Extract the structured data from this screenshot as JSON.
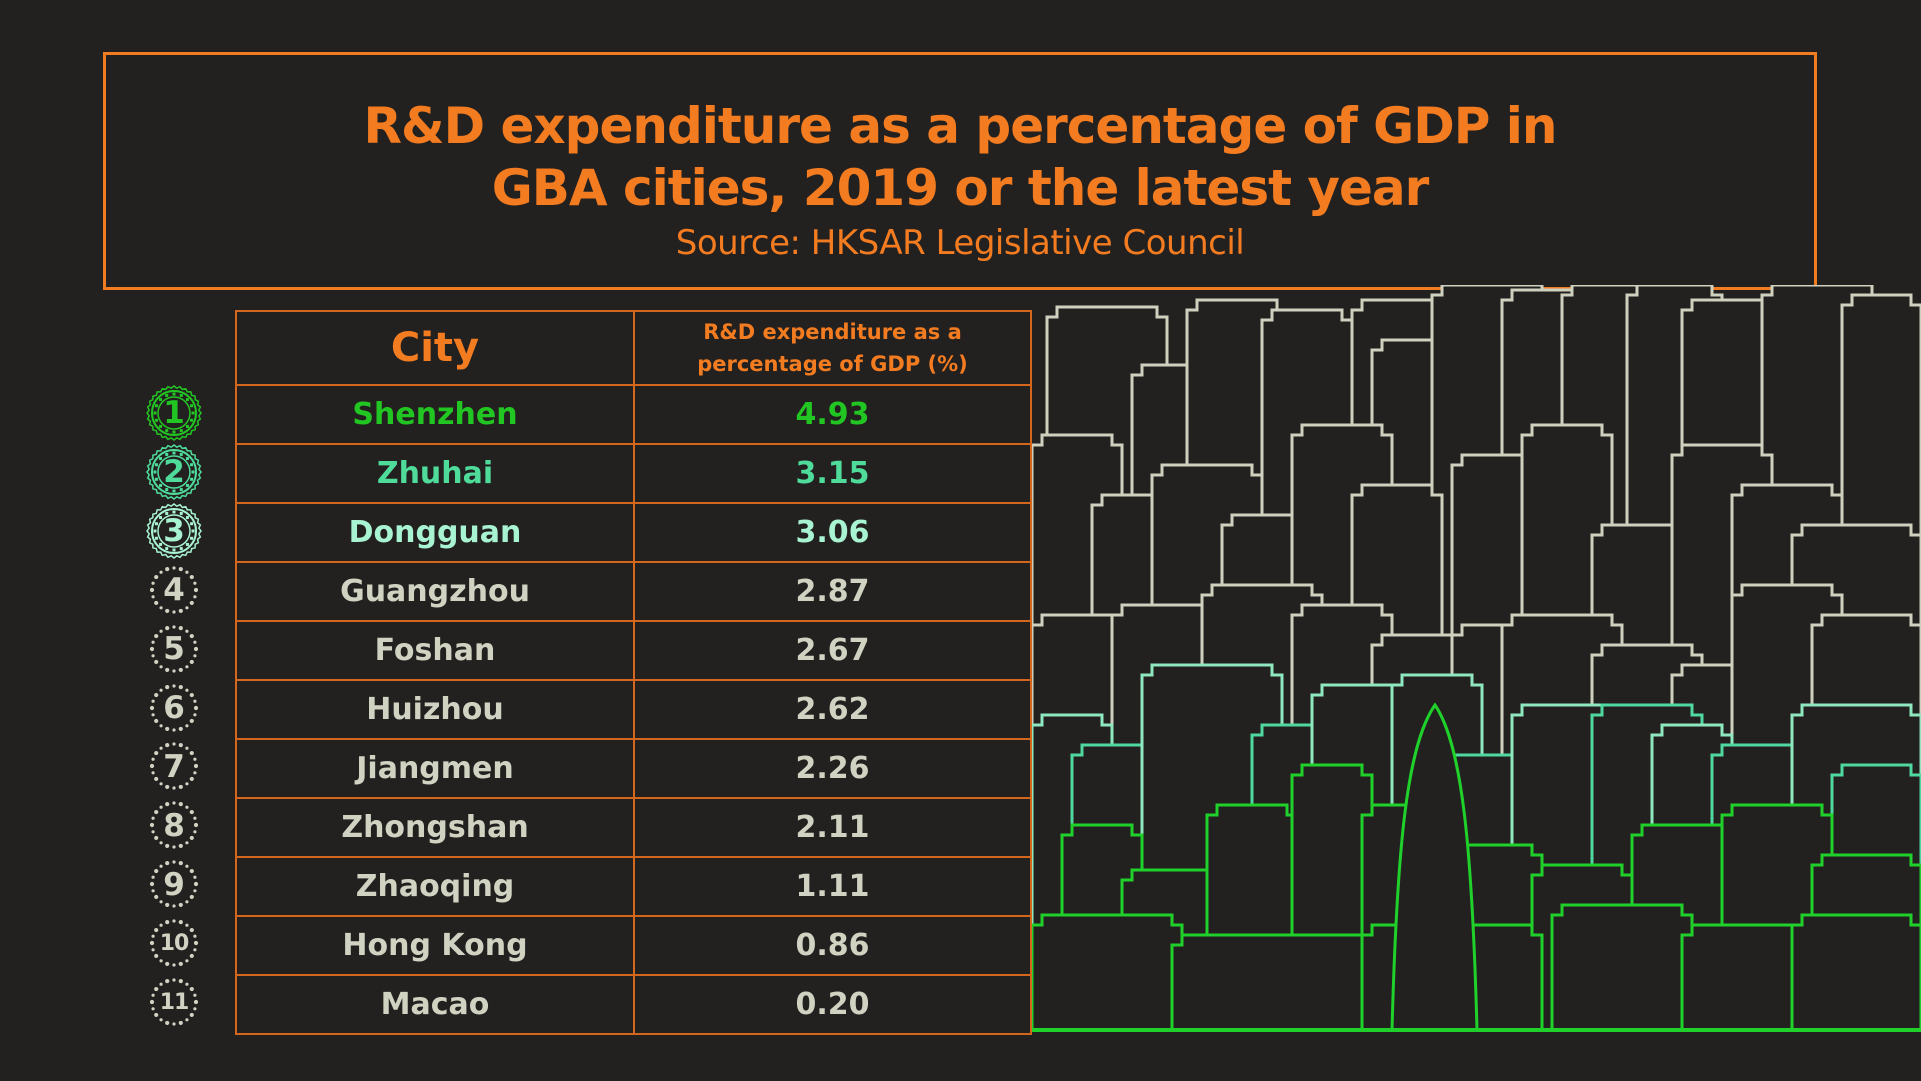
{
  "header": {
    "title_line1": "R&D expenditure as a percentage of GDP in",
    "title_line2": "GBA cities, 2019 or the latest year",
    "source": "Source: HKSAR Legislative Council"
  },
  "colors": {
    "background": "#232120",
    "accent_orange": "#f47c20",
    "rank1_green": "#22c622",
    "rank2_green": "#4fdc9b",
    "rank3_mint": "#a8f3d1",
    "default_text": "#d1d3c2"
  },
  "table": {
    "headers": {
      "city": "City",
      "value_line1": "R&D expenditure as a",
      "value_line2": "percentage of GDP (%)"
    },
    "rows": [
      {
        "rank": "1",
        "city": "Shenzhen",
        "value": "4.93"
      },
      {
        "rank": "2",
        "city": "Zhuhai",
        "value": "3.15"
      },
      {
        "rank": "3",
        "city": "Dongguan",
        "value": "3.06"
      },
      {
        "rank": "4",
        "city": "Guangzhou",
        "value": "2.87"
      },
      {
        "rank": "5",
        "city": "Foshan",
        "value": "2.67"
      },
      {
        "rank": "6",
        "city": "Huizhou",
        "value": "2.62"
      },
      {
        "rank": "7",
        "city": "Jiangmen",
        "value": "2.26"
      },
      {
        "rank": "8",
        "city": "Zhongshan",
        "value": "2.11"
      },
      {
        "rank": "9",
        "city": "Zhaoqing",
        "value": "1.11"
      },
      {
        "rank": "10",
        "city": "Hong Kong",
        "value": "0.86"
      },
      {
        "rank": "11",
        "city": "Macao",
        "value": "0.20"
      }
    ]
  },
  "decoration": {
    "skyline_icon": "city-skyline-outline",
    "rank_badge_icon_top3": "scalloped-rosette-badge",
    "rank_badge_icon_rest": "dotted-circle-badge"
  },
  "chart_data": {
    "type": "table",
    "title": "R&D expenditure as a percentage of GDP in GBA cities, 2019 or the latest year",
    "subtitle": "Source: HKSAR Legislative Council",
    "columns": [
      "City",
      "R&D expenditure as a percentage of GDP (%)"
    ],
    "categories": [
      "Shenzhen",
      "Zhuhai",
      "Dongguan",
      "Guangzhou",
      "Foshan",
      "Huizhou",
      "Jiangmen",
      "Zhongshan",
      "Zhaoqing",
      "Hong Kong",
      "Macao"
    ],
    "values": [
      4.93,
      3.15,
      3.06,
      2.87,
      2.67,
      2.62,
      2.26,
      2.11,
      1.11,
      0.86,
      0.2
    ],
    "ranks": [
      1,
      2,
      3,
      4,
      5,
      6,
      7,
      8,
      9,
      10,
      11
    ]
  }
}
